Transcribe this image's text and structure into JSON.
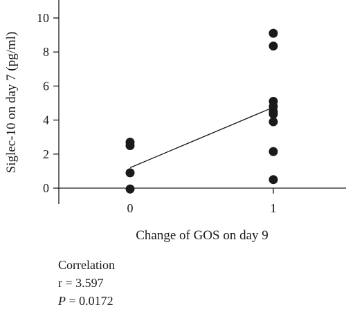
{
  "chart_data": {
    "type": "scatter",
    "xlabel": "Change of GOS on day 9",
    "ylabel": "Siglec-10 on day 7 (pg/ml)",
    "x_ticks": [
      "0",
      "1"
    ],
    "y_ticks": [
      "0",
      "2",
      "4",
      "6",
      "8",
      "10"
    ],
    "ylim": [
      0,
      10.4
    ],
    "xlim": [
      -0.5,
      1.5
    ],
    "grid": false,
    "points": [
      {
        "x": 0,
        "y": 2.7
      },
      {
        "x": 0,
        "y": 2.5
      },
      {
        "x": 0,
        "y": 0.9
      },
      {
        "x": 0,
        "y": -0.05
      },
      {
        "x": 1,
        "y": 9.1
      },
      {
        "x": 1,
        "y": 8.35
      },
      {
        "x": 1,
        "y": 5.1
      },
      {
        "x": 1,
        "y": 4.8
      },
      {
        "x": 1,
        "y": 4.5
      },
      {
        "x": 1,
        "y": 4.35
      },
      {
        "x": 1,
        "y": 3.9
      },
      {
        "x": 1,
        "y": 2.15
      },
      {
        "x": 1,
        "y": 0.5
      }
    ],
    "trend_line": {
      "x": [
        0,
        1
      ],
      "y": [
        1.2,
        4.75
      ]
    }
  },
  "stats": {
    "heading": "Correlation",
    "r_line": "r = 3.597",
    "p_label": "P",
    "p_value": " = 0.0172"
  }
}
